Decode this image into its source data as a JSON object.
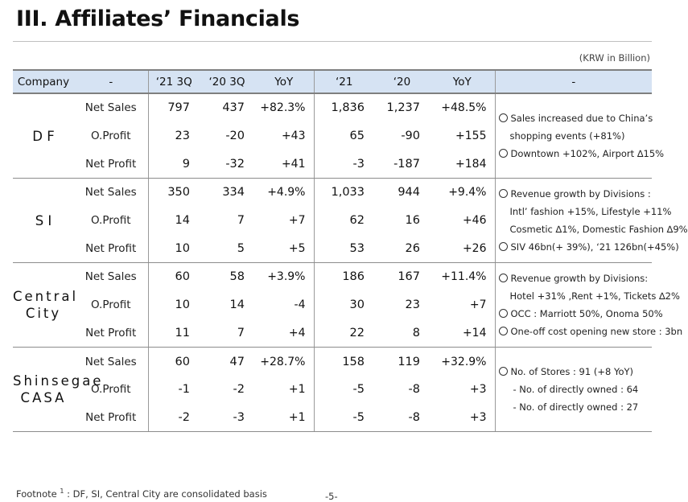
{
  "title": "III. Affiliates’ Financials",
  "unit": "(KRW in Billion)",
  "headers": [
    "Company",
    "-",
    "‘21 3Q",
    "‘20 3Q",
    "YoY",
    "‘21",
    "‘20",
    "YoY",
    "-"
  ],
  "companies": [
    {
      "name_line1": "D  F",
      "name_line2": "",
      "rows": [
        {
          "metric": "Net Sales",
          "v": [
            "797",
            "437",
            "+82.3%",
            "1,836",
            "1,237",
            "+48.5%"
          ]
        },
        {
          "metric": "O.Profit",
          "v": [
            "23",
            "-20",
            "+43",
            "65",
            "-90",
            "+155"
          ]
        },
        {
          "metric": "Net Profit",
          "v": [
            "9",
            "-32",
            "+41",
            "-3",
            "-187",
            "+184"
          ]
        }
      ],
      "notes": [
        {
          "bullet": true,
          "text": "Sales increased due to China’s"
        },
        {
          "bullet": false,
          "text": "shopping events (+81%)"
        },
        {
          "bullet": true,
          "text": "Downtown +102%, Airport ∆15%"
        }
      ]
    },
    {
      "name_line1": "S  I",
      "name_line2": "",
      "rows": [
        {
          "metric": "Net Sales",
          "v": [
            "350",
            "334",
            "+4.9%",
            "1,033",
            "944",
            "+9.4%"
          ]
        },
        {
          "metric": "O.Profit",
          "v": [
            "14",
            "7",
            "+7",
            "62",
            "16",
            "+46"
          ]
        },
        {
          "metric": "Net Profit",
          "v": [
            "10",
            "5",
            "+5",
            "53",
            "26",
            "+26"
          ]
        }
      ],
      "notes": [
        {
          "bullet": true,
          "text": "Revenue growth by Divisions :"
        },
        {
          "bullet": false,
          "text": "Intl’ fashion +15%, Lifestyle +11%"
        },
        {
          "bullet": false,
          "text": "Cosmetic ∆1%, Domestic Fashion ∆9%"
        },
        {
          "bullet": true,
          "text": "SIV 46bn(+ 39%), ‘21 126bn(+45%)"
        }
      ]
    },
    {
      "name_line1": "Central",
      "name_line2": "City",
      "rows": [
        {
          "metric": "Net Sales",
          "v": [
            "60",
            "58",
            "+3.9%",
            "186",
            "167",
            "+11.4%"
          ]
        },
        {
          "metric": "O.Profit",
          "v": [
            "10",
            "14",
            "-4",
            "30",
            "23",
            "+7"
          ]
        },
        {
          "metric": "Net Profit",
          "v": [
            "11",
            "7",
            "+4",
            "22",
            "8",
            "+14"
          ]
        }
      ],
      "notes": [
        {
          "bullet": true,
          "text": "Revenue growth by Divisions:"
        },
        {
          "bullet": false,
          "text": "Hotel +31% ,Rent +1%, Tickets ∆2%"
        },
        {
          "bullet": true,
          "text": "OCC : Marriott 50%, Onoma  50%"
        },
        {
          "bullet": true,
          "text": "One-off cost opening new store : 3bn"
        }
      ]
    },
    {
      "name_line1": "Shinsegae",
      "name_line2": "CASA",
      "rows": [
        {
          "metric": "Net Sales",
          "v": [
            "60",
            "47",
            "+28.7%",
            "158",
            "119",
            "+32.9%"
          ]
        },
        {
          "metric": "O.Profit",
          "v": [
            "-1",
            "-2",
            "+1",
            "-5",
            "-8",
            "+3"
          ]
        },
        {
          "metric": "Net Profit",
          "v": [
            "-2",
            "-3",
            "+1",
            "-5",
            "-8",
            "+3"
          ]
        }
      ],
      "notes": [
        {
          "bullet": true,
          "text": "No. of Stores : 91 (+8 YoY)"
        },
        {
          "bullet": false,
          "text": "- No. of directly owned : 64"
        },
        {
          "bullet": false,
          "text": "- No. of directly owned : 27"
        }
      ]
    }
  ],
  "footnote_label": "Footnote",
  "footnote_sup": "1",
  "footnote_text": " :  DF, SI, Central City are consolidated basis",
  "page_number": "-5-"
}
